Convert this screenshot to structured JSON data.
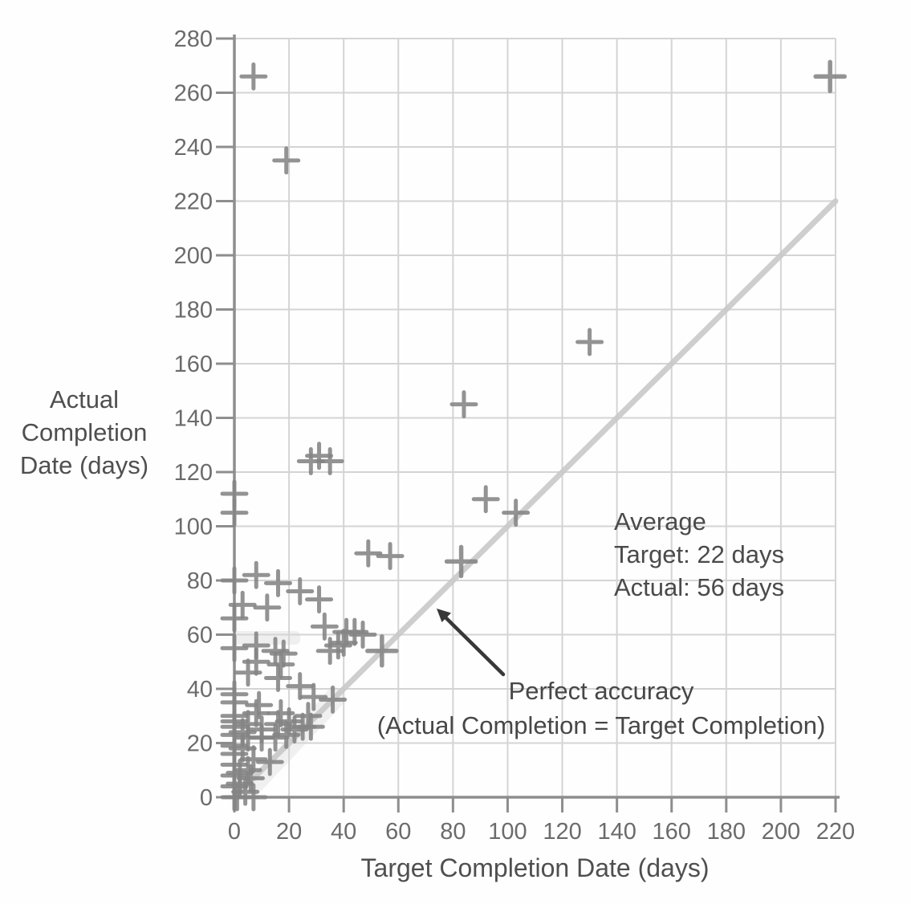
{
  "figure": {
    "y_axis_title_lines": [
      "Actual",
      "Completion",
      "Date (days)"
    ],
    "x_axis_title": "Target Completion Date (days)"
  },
  "annotations": {
    "average": {
      "line1": "Average",
      "line2": "Target: 22 days",
      "line3": "Actual: 56 days"
    },
    "perfect_accuracy": {
      "line1": "Perfect accuracy",
      "line2": "(Actual Completion = Target Completion)"
    }
  },
  "chart_data": {
    "type": "scatter",
    "marker": "plus",
    "title": "",
    "xlabel": "Target Completion Date (days)",
    "ylabel": "Actual Completion Date (days)",
    "xlim": [
      0,
      220
    ],
    "ylim": [
      0,
      280
    ],
    "x_ticks": [
      0,
      20,
      40,
      60,
      80,
      100,
      120,
      140,
      160,
      180,
      200,
      220
    ],
    "y_ticks": [
      0,
      20,
      40,
      60,
      80,
      100,
      120,
      140,
      160,
      180,
      200,
      220,
      240,
      260,
      280
    ],
    "grid": true,
    "reference_line": {
      "from_xy": [
        0,
        0
      ],
      "to_xy": [
        220,
        220
      ],
      "meaning": "Perfect accuracy (Actual Completion = Target Completion)"
    },
    "average_stats": {
      "target_days": 22,
      "actual_days": 56
    },
    "points": [
      [
        7,
        266
      ],
      [
        19,
        235
      ],
      [
        218,
        266,
        1
      ],
      [
        28,
        124
      ],
      [
        31,
        126
      ],
      [
        35,
        124
      ],
      [
        84,
        145
      ],
      [
        92,
        110
      ],
      [
        103,
        105
      ],
      [
        130,
        168
      ],
      [
        49,
        90
      ],
      [
        57,
        89
      ],
      [
        83,
        87,
        1
      ],
      [
        0,
        112
      ],
      [
        0,
        105
      ],
      [
        0,
        80
      ],
      [
        8,
        82
      ],
      [
        16,
        79
      ],
      [
        24,
        76
      ],
      [
        31,
        73
      ],
      [
        3,
        71
      ],
      [
        12,
        70
      ],
      [
        33,
        63
      ],
      [
        0,
        66
      ],
      [
        0,
        55
      ],
      [
        8,
        56
      ],
      [
        15,
        54
      ],
      [
        18,
        53
      ],
      [
        8,
        50
      ],
      [
        17,
        49
      ],
      [
        5,
        46
      ],
      [
        35,
        54
      ],
      [
        38,
        56
      ],
      [
        40,
        57
      ],
      [
        41,
        61
      ],
      [
        44,
        61
      ],
      [
        47,
        60
      ],
      [
        54,
        54,
        1
      ],
      [
        16,
        44
      ],
      [
        24,
        41
      ],
      [
        29,
        37
      ],
      [
        36,
        36
      ],
      [
        0,
        38
      ],
      [
        0,
        35
      ],
      [
        9,
        34
      ],
      [
        8,
        31
      ],
      [
        17,
        31
      ],
      [
        27,
        30
      ],
      [
        0,
        30
      ],
      [
        0,
        28
      ],
      [
        0,
        26
      ],
      [
        0,
        23
      ],
      [
        3,
        24
      ],
      [
        5,
        27
      ],
      [
        5,
        22
      ],
      [
        10,
        25
      ],
      [
        10,
        22
      ],
      [
        15,
        22
      ],
      [
        16,
        27
      ],
      [
        20,
        28
      ],
      [
        22,
        25
      ],
      [
        25,
        26
      ],
      [
        28,
        26
      ],
      [
        19,
        23
      ],
      [
        0,
        19
      ],
      [
        0,
        16
      ],
      [
        0,
        12
      ],
      [
        0,
        8
      ],
      [
        0,
        4
      ],
      [
        0,
        0
      ],
      [
        3,
        18
      ],
      [
        7,
        14
      ],
      [
        13,
        13
      ],
      [
        2,
        9
      ],
      [
        6,
        7
      ],
      [
        2,
        5
      ],
      [
        5,
        10
      ],
      [
        4,
        2
      ],
      [
        1,
        0
      ],
      [
        7,
        0
      ]
    ],
    "colors": {
      "marker": "#858585",
      "grid": "#d4d4d4",
      "axis": "#8e8e8e",
      "tick_label": "#6b6b6b",
      "reference_line": "#c9c9c9",
      "arrow": "#383838",
      "text": "#4a4a4a"
    }
  }
}
